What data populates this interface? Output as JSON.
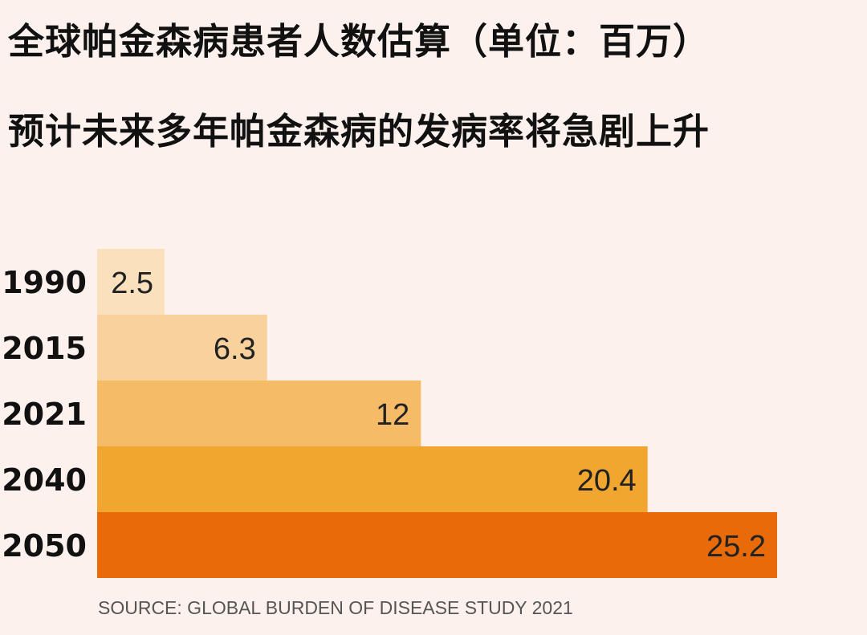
{
  "title": "全球帕金森病患者人数估算（单位：百万）",
  "subtitle": "预计未来多年帕金森病的发病率将急剧上升",
  "source": "SOURCE: GLOBAL BURDEN OF DISEASE STUDY 2021",
  "chart_data": {
    "type": "bar",
    "orientation": "horizontal",
    "categories": [
      "1990",
      "2015",
      "2021",
      "2040",
      "2050"
    ],
    "values": [
      2.5,
      6.3,
      12,
      20.4,
      25.2
    ],
    "value_labels": [
      "2.5",
      "6.3",
      "12",
      "20.4",
      "25.2"
    ],
    "colors": [
      "#fbe0bd",
      "#f8d19c",
      "#f5bb67",
      "#f1a630",
      "#e86a08"
    ],
    "title": "全球帕金森病患者人数估算（单位：百万）",
    "xlabel": "",
    "ylabel": "",
    "xlim": [
      0,
      25.2
    ],
    "grid": false,
    "legend": "none"
  }
}
